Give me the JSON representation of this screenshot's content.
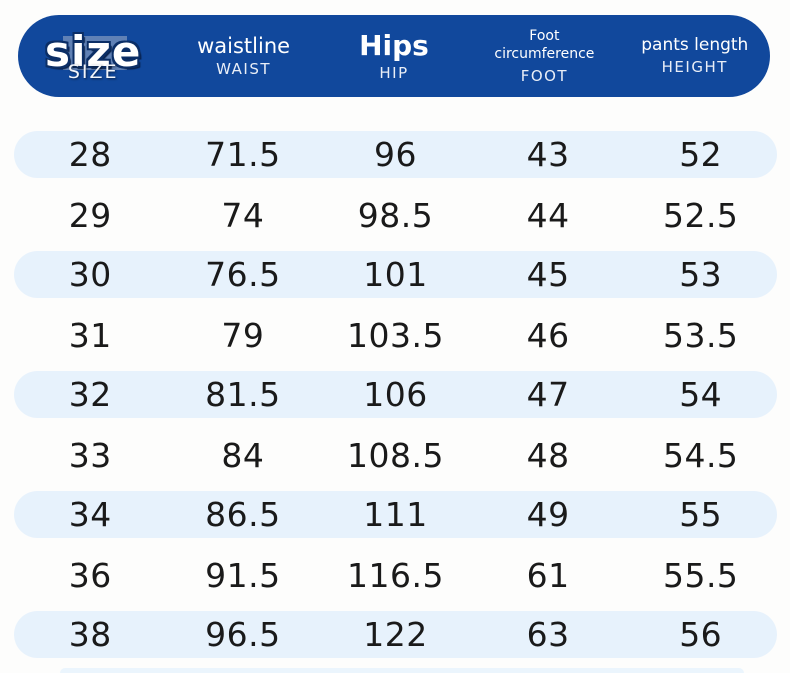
{
  "table": {
    "header": {
      "columns": [
        {
          "main": "size",
          "sub": "SIZE"
        },
        {
          "main": "waistline",
          "sub": "WAIST"
        },
        {
          "main": "Hips",
          "sub": "HIP"
        },
        {
          "main": "Foot circumference",
          "sub": "FOOT"
        },
        {
          "main": "pants length",
          "sub": "HEIGHT"
        }
      ]
    },
    "rows": [
      [
        "28",
        "71.5",
        "96",
        "43",
        "52"
      ],
      [
        "29",
        "74",
        "98.5",
        "44",
        "52.5"
      ],
      [
        "30",
        "76.5",
        "101",
        "45",
        "53"
      ],
      [
        "31",
        "79",
        "103.5",
        "46",
        "53.5"
      ],
      [
        "32",
        "81.5",
        "106",
        "47",
        "54"
      ],
      [
        "33",
        "84",
        "108.5",
        "48",
        "54.5"
      ],
      [
        "34",
        "86.5",
        "111",
        "49",
        "55"
      ],
      [
        "36",
        "91.5",
        "116.5",
        "61",
        "55.5"
      ],
      [
        "38",
        "96.5",
        "122",
        "63",
        "56"
      ]
    ]
  },
  "colors": {
    "header_bg": "#11489c",
    "row_alt_bg": "#e7f2fc",
    "page_bg": "#fdfdfc",
    "text": "#1a1a1a"
  }
}
